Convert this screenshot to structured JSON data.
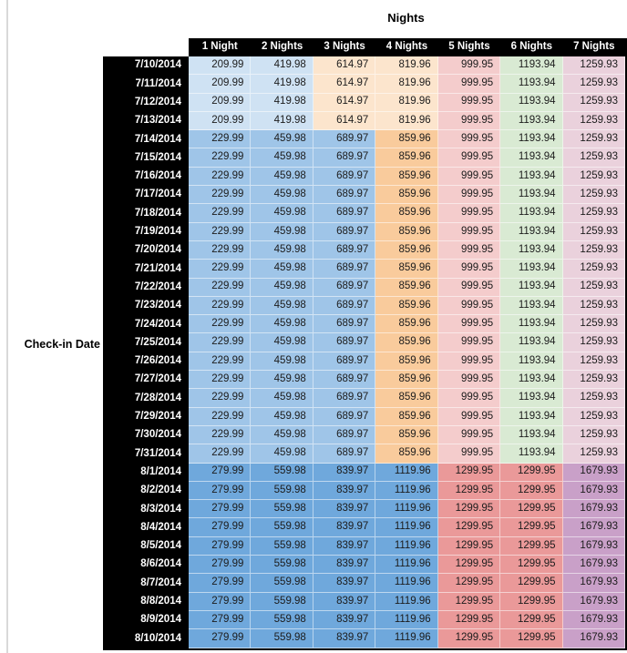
{
  "chart_data": {
    "type": "table",
    "title": "Nights",
    "row_axis_label": "Check-in Date",
    "columns": [
      "1 Night",
      "2 Nights",
      "3 Nights",
      "4 Nights",
      "5 Nights",
      "6 Nights",
      "7 Nights"
    ],
    "band_colors": {
      "early_july": [
        "#cfe2f3",
        "#cfe2f3",
        "#fce5cd",
        "#fce5cd",
        "#f4cccc",
        "#d9ead3",
        "#ead1dc"
      ],
      "mid_july": [
        "#9fc5e8",
        "#9fc5e8",
        "#9fc5e8",
        "#f9cb9c",
        "#f4cccc",
        "#d9ead3",
        "#ead1dc"
      ],
      "august": [
        "#6fa8dc",
        "#6fa8dc",
        "#6fa8dc",
        "#6fa8dc",
        "#ea9999",
        "#ea9999",
        "#c9a0c8"
      ]
    },
    "styles": {
      "header_bg": "#000000",
      "header_text": "#ffffff",
      "row_label_bg": "#000000",
      "row_label_text": "#ffffff",
      "cell_text": "#1c1c1c",
      "sheet_gridline": "#d9d9d9"
    },
    "rows": [
      {
        "date": "7/10/2014",
        "band": "early_july",
        "values": [
          "209.99",
          "419.98",
          "614.97",
          "819.96",
          "999.95",
          "1193.94",
          "1259.93"
        ]
      },
      {
        "date": "7/11/2014",
        "band": "early_july",
        "values": [
          "209.99",
          "419.98",
          "614.97",
          "819.96",
          "999.95",
          "1193.94",
          "1259.93"
        ]
      },
      {
        "date": "7/12/2014",
        "band": "early_july",
        "values": [
          "209.99",
          "419.98",
          "614.97",
          "819.96",
          "999.95",
          "1193.94",
          "1259.93"
        ]
      },
      {
        "date": "7/13/2014",
        "band": "early_july",
        "values": [
          "209.99",
          "419.98",
          "614.97",
          "819.96",
          "999.95",
          "1193.94",
          "1259.93"
        ]
      },
      {
        "date": "7/14/2014",
        "band": "mid_july",
        "values": [
          "229.99",
          "459.98",
          "689.97",
          "859.96",
          "999.95",
          "1193.94",
          "1259.93"
        ]
      },
      {
        "date": "7/15/2014",
        "band": "mid_july",
        "values": [
          "229.99",
          "459.98",
          "689.97",
          "859.96",
          "999.95",
          "1193.94",
          "1259.93"
        ]
      },
      {
        "date": "7/16/2014",
        "band": "mid_july",
        "values": [
          "229.99",
          "459.98",
          "689.97",
          "859.96",
          "999.95",
          "1193.94",
          "1259.93"
        ]
      },
      {
        "date": "7/17/2014",
        "band": "mid_july",
        "values": [
          "229.99",
          "459.98",
          "689.97",
          "859.96",
          "999.95",
          "1193.94",
          "1259.93"
        ]
      },
      {
        "date": "7/18/2014",
        "band": "mid_july",
        "values": [
          "229.99",
          "459.98",
          "689.97",
          "859.96",
          "999.95",
          "1193.94",
          "1259.93"
        ]
      },
      {
        "date": "7/19/2014",
        "band": "mid_july",
        "values": [
          "229.99",
          "459.98",
          "689.97",
          "859.96",
          "999.95",
          "1193.94",
          "1259.93"
        ]
      },
      {
        "date": "7/20/2014",
        "band": "mid_july",
        "values": [
          "229.99",
          "459.98",
          "689.97",
          "859.96",
          "999.95",
          "1193.94",
          "1259.93"
        ]
      },
      {
        "date": "7/21/2014",
        "band": "mid_july",
        "values": [
          "229.99",
          "459.98",
          "689.97",
          "859.96",
          "999.95",
          "1193.94",
          "1259.93"
        ]
      },
      {
        "date": "7/22/2014",
        "band": "mid_july",
        "values": [
          "229.99",
          "459.98",
          "689.97",
          "859.96",
          "999.95",
          "1193.94",
          "1259.93"
        ]
      },
      {
        "date": "7/23/2014",
        "band": "mid_july",
        "values": [
          "229.99",
          "459.98",
          "689.97",
          "859.96",
          "999.95",
          "1193.94",
          "1259.93"
        ]
      },
      {
        "date": "7/24/2014",
        "band": "mid_july",
        "values": [
          "229.99",
          "459.98",
          "689.97",
          "859.96",
          "999.95",
          "1193.94",
          "1259.93"
        ]
      },
      {
        "date": "7/25/2014",
        "band": "mid_july",
        "values": [
          "229.99",
          "459.98",
          "689.97",
          "859.96",
          "999.95",
          "1193.94",
          "1259.93"
        ]
      },
      {
        "date": "7/26/2014",
        "band": "mid_july",
        "values": [
          "229.99",
          "459.98",
          "689.97",
          "859.96",
          "999.95",
          "1193.94",
          "1259.93"
        ]
      },
      {
        "date": "7/27/2014",
        "band": "mid_july",
        "values": [
          "229.99",
          "459.98",
          "689.97",
          "859.96",
          "999.95",
          "1193.94",
          "1259.93"
        ]
      },
      {
        "date": "7/28/2014",
        "band": "mid_july",
        "values": [
          "229.99",
          "459.98",
          "689.97",
          "859.96",
          "999.95",
          "1193.94",
          "1259.93"
        ]
      },
      {
        "date": "7/29/2014",
        "band": "mid_july",
        "values": [
          "229.99",
          "459.98",
          "689.97",
          "859.96",
          "999.95",
          "1193.94",
          "1259.93"
        ]
      },
      {
        "date": "7/30/2014",
        "band": "mid_july",
        "values": [
          "229.99",
          "459.98",
          "689.97",
          "859.96",
          "999.95",
          "1193.94",
          "1259.93"
        ]
      },
      {
        "date": "7/31/2014",
        "band": "mid_july",
        "values": [
          "229.99",
          "459.98",
          "689.97",
          "859.96",
          "999.95",
          "1193.94",
          "1259.93"
        ]
      },
      {
        "date": "8/1/2014",
        "band": "august",
        "values": [
          "279.99",
          "559.98",
          "839.97",
          "1119.96",
          "1299.95",
          "1299.95",
          "1679.93"
        ]
      },
      {
        "date": "8/2/2014",
        "band": "august",
        "values": [
          "279.99",
          "559.98",
          "839.97",
          "1119.96",
          "1299.95",
          "1299.95",
          "1679.93"
        ]
      },
      {
        "date": "8/3/2014",
        "band": "august",
        "values": [
          "279.99",
          "559.98",
          "839.97",
          "1119.96",
          "1299.95",
          "1299.95",
          "1679.93"
        ]
      },
      {
        "date": "8/4/2014",
        "band": "august",
        "values": [
          "279.99",
          "559.98",
          "839.97",
          "1119.96",
          "1299.95",
          "1299.95",
          "1679.93"
        ]
      },
      {
        "date": "8/5/2014",
        "band": "august",
        "values": [
          "279.99",
          "559.98",
          "839.97",
          "1119.96",
          "1299.95",
          "1299.95",
          "1679.93"
        ]
      },
      {
        "date": "8/6/2014",
        "band": "august",
        "values": [
          "279.99",
          "559.98",
          "839.97",
          "1119.96",
          "1299.95",
          "1299.95",
          "1679.93"
        ]
      },
      {
        "date": "8/7/2014",
        "band": "august",
        "values": [
          "279.99",
          "559.98",
          "839.97",
          "1119.96",
          "1299.95",
          "1299.95",
          "1679.93"
        ]
      },
      {
        "date": "8/8/2014",
        "band": "august",
        "values": [
          "279.99",
          "559.98",
          "839.97",
          "1119.96",
          "1299.95",
          "1299.95",
          "1679.93"
        ]
      },
      {
        "date": "8/9/2014",
        "band": "august",
        "values": [
          "279.99",
          "559.98",
          "839.97",
          "1119.96",
          "1299.95",
          "1299.95",
          "1679.93"
        ]
      },
      {
        "date": "8/10/2014",
        "band": "august",
        "values": [
          "279.99",
          "559.98",
          "839.97",
          "1119.96",
          "1299.95",
          "1299.95",
          "1679.93"
        ]
      }
    ]
  }
}
